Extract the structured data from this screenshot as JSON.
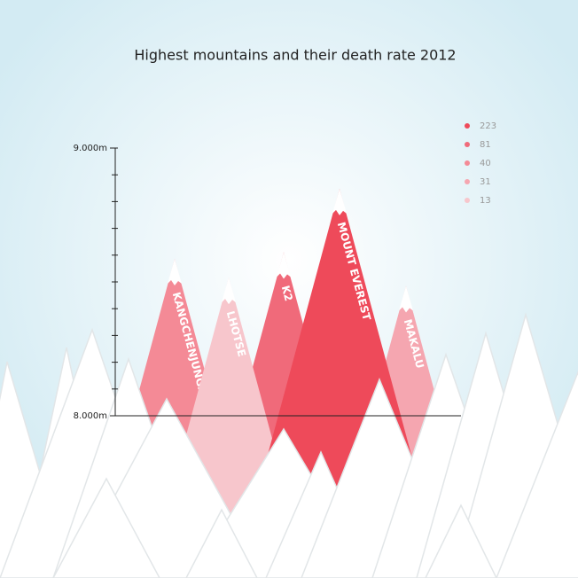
{
  "chart_data": {
    "type": "mountain",
    "title": "Highest mountains and their death rate 2012",
    "categories": [
      "KANGCHENJUNGA",
      "LHOTSE",
      "K2",
      "MOUNT EVEREST",
      "MAKALU"
    ],
    "values": [
      8586,
      8516,
      8611,
      8848,
      8485
    ],
    "deaths": [
      40,
      13,
      81,
      223,
      31
    ],
    "colors": [
      "#f48a96",
      "#f7c6cc",
      "#f06a7a",
      "#ee4a5a",
      "#f5a6b0"
    ],
    "ylim": [
      8000,
      9000
    ],
    "yticks": [
      {
        "value": 8000,
        "label": "8.000m"
      },
      {
        "value": 9000,
        "label": "9.000m"
      }
    ],
    "minor_yticks": [
      8100,
      8200,
      8300,
      8400,
      8500,
      8600,
      8700,
      8800,
      8900
    ]
  }
}
